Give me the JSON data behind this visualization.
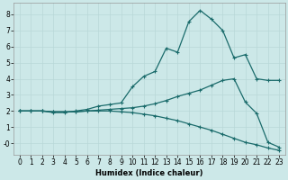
{
  "xlabel": "Humidex (Indice chaleur)",
  "bg_color": "#cce8e8",
  "grid_color": "#b8d8d8",
  "line_color": "#1a6b6b",
  "xlim": [
    -0.5,
    23.5
  ],
  "ylim": [
    -0.7,
    8.7
  ],
  "xticks": [
    0,
    1,
    2,
    3,
    4,
    5,
    6,
    7,
    8,
    9,
    10,
    11,
    12,
    13,
    14,
    15,
    16,
    17,
    18,
    19,
    20,
    21,
    22,
    23
  ],
  "yticks": [
    0,
    1,
    2,
    3,
    4,
    5,
    6,
    7,
    8
  ],
  "ytick_labels": [
    "-0",
    "1",
    "2",
    "3",
    "4",
    "5",
    "6",
    "7",
    "8"
  ],
  "line1_x": [
    0,
    1,
    2,
    3,
    4,
    5,
    6,
    7,
    8,
    9,
    10,
    11,
    12,
    13,
    14,
    15,
    16,
    17,
    18,
    19,
    20,
    21,
    22,
    23
  ],
  "line1_y": [
    2.0,
    2.0,
    2.0,
    1.9,
    1.9,
    2.0,
    2.1,
    2.3,
    2.4,
    2.5,
    3.5,
    4.15,
    4.45,
    5.9,
    5.65,
    7.55,
    8.25,
    7.7,
    7.0,
    5.3,
    5.5,
    4.0,
    3.9,
    3.9
  ],
  "line2_x": [
    0,
    1,
    2,
    3,
    4,
    5,
    6,
    7,
    8,
    9,
    10,
    11,
    12,
    13,
    14,
    15,
    16,
    17,
    18,
    19,
    20,
    21,
    22,
    23
  ],
  "line2_y": [
    2.0,
    2.0,
    2.0,
    1.95,
    1.95,
    1.95,
    2.0,
    2.05,
    2.1,
    2.15,
    2.2,
    2.3,
    2.45,
    2.65,
    2.9,
    3.1,
    3.3,
    3.6,
    3.9,
    4.0,
    2.55,
    1.85,
    0.05,
    -0.25
  ],
  "line3_x": [
    0,
    1,
    2,
    3,
    4,
    5,
    6,
    7,
    8,
    9,
    10,
    11,
    12,
    13,
    14,
    15,
    16,
    17,
    18,
    19,
    20,
    21,
    22,
    23
  ],
  "line3_y": [
    2.0,
    2.0,
    2.0,
    1.95,
    1.95,
    1.95,
    2.0,
    2.0,
    2.0,
    1.95,
    1.9,
    1.8,
    1.7,
    1.55,
    1.4,
    1.2,
    1.0,
    0.8,
    0.55,
    0.3,
    0.05,
    -0.1,
    -0.3,
    -0.45
  ]
}
